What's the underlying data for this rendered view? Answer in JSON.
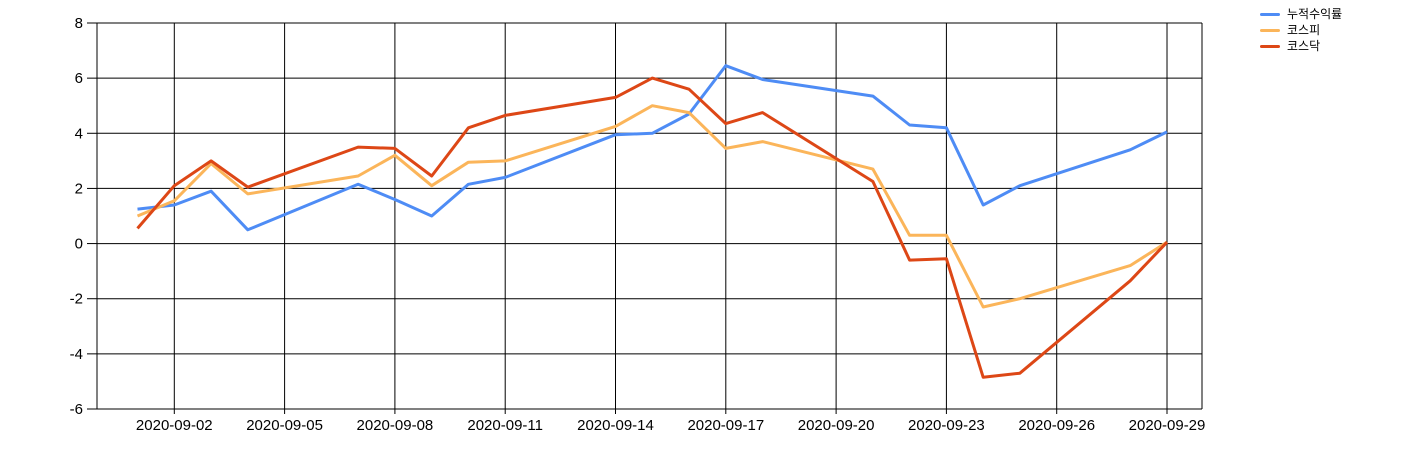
{
  "chart_data": {
    "type": "line",
    "title": "",
    "xlabel": "",
    "ylabel": "",
    "grid": true,
    "background": "#ffffff",
    "grid_color": "#000000",
    "text_color": "#000000",
    "x": [
      "2020-09-01",
      "2020-09-02",
      "2020-09-03",
      "2020-09-04",
      "2020-09-07",
      "2020-09-08",
      "2020-09-09",
      "2020-09-10",
      "2020-09-11",
      "2020-09-14",
      "2020-09-15",
      "2020-09-16",
      "2020-09-17",
      "2020-09-18",
      "2020-09-21",
      "2020-09-22",
      "2020-09-23",
      "2020-09-24",
      "2020-09-25",
      "2020-09-28",
      "2020-09-29"
    ],
    "series": [
      {
        "name": "누적수익률",
        "color": "#4e8cf5",
        "values": [
          1.25,
          1.4,
          1.9,
          0.5,
          2.15,
          1.6,
          1.0,
          2.15,
          2.4,
          3.95,
          4.0,
          4.7,
          6.45,
          5.95,
          5.35,
          4.3,
          4.2,
          1.4,
          2.1,
          3.4,
          4.05
        ]
      },
      {
        "name": "코스피",
        "color": "#fbb55a",
        "values": [
          1.0,
          1.55,
          2.9,
          1.8,
          2.45,
          3.2,
          2.1,
          2.95,
          3.0,
          4.25,
          5.0,
          4.75,
          3.45,
          3.7,
          2.7,
          0.3,
          0.3,
          -2.3,
          -2.0,
          -0.8,
          0.05
        ]
      },
      {
        "name": "코스닥",
        "color": "#dd4716",
        "values": [
          0.55,
          2.1,
          3.0,
          2.05,
          3.5,
          3.45,
          2.45,
          4.2,
          4.65,
          5.3,
          6.0,
          5.6,
          4.35,
          4.75,
          2.25,
          -0.6,
          -0.55,
          -4.85,
          -4.7,
          -1.35,
          0.05
        ]
      }
    ],
    "y_axis": {
      "min": -6,
      "max": 8,
      "tick_step": 2,
      "ticks": [
        8,
        6,
        4,
        2,
        0,
        -2,
        -4,
        -6
      ]
    },
    "x_axis": {
      "tick_labels": [
        "2020-09-02",
        "2020-09-05",
        "2020-09-08",
        "2020-09-11",
        "2020-09-14",
        "2020-09-17",
        "2020-09-20",
        "2020-09-23",
        "2020-09-26",
        "2020-09-29"
      ]
    },
    "legend": {
      "position": "top-right"
    }
  }
}
